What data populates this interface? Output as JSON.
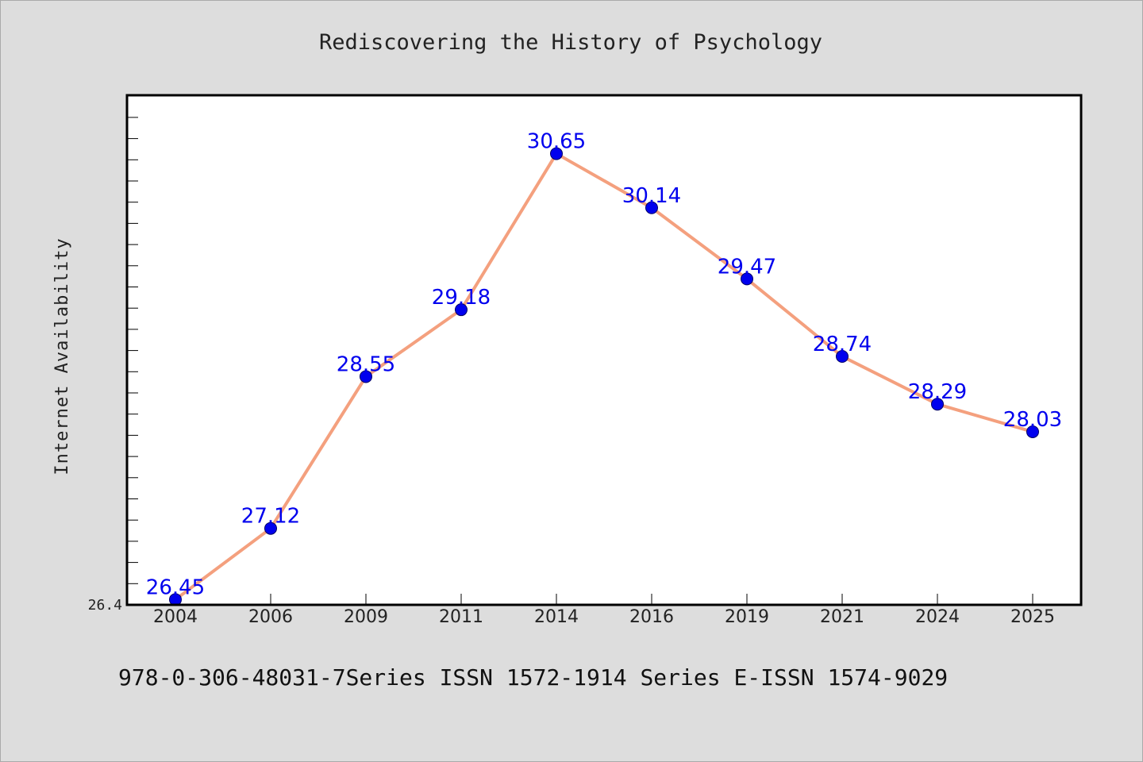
{
  "chart_data": {
    "type": "line",
    "title": "Rediscovering the History of Psychology",
    "xlabel": "",
    "ylabel": "Internet Availability",
    "categories": [
      "2004",
      "2006",
      "2009",
      "2011",
      "2014",
      "2016",
      "2019",
      "2021",
      "2024",
      "2025"
    ],
    "series": [
      {
        "values": [
          26.45,
          27.12,
          28.55,
          29.18,
          30.65,
          30.14,
          29.47,
          28.74,
          28.29,
          28.03
        ]
      }
    ],
    "ylim": [
      26.4,
      31.2
    ],
    "y_tick_labels": [
      "26.4"
    ],
    "data_labels": [
      "26.45",
      "27.12",
      "28.55",
      "29.18",
      "30.65",
      "30.14",
      "29.47",
      "28.74",
      "28.29",
      "28.03"
    ],
    "grid": false,
    "legend": "none",
    "colors": {
      "line": "#f4a07e",
      "marker": "#0000ee",
      "data_label": "#0000ee",
      "plot_background": "#ffffff",
      "figure_background": "#dddddd"
    }
  },
  "footer": {
    "text": "978-0-306-48031-7Series ISSN 1572-1914 Series E-ISSN 1574-9029"
  }
}
